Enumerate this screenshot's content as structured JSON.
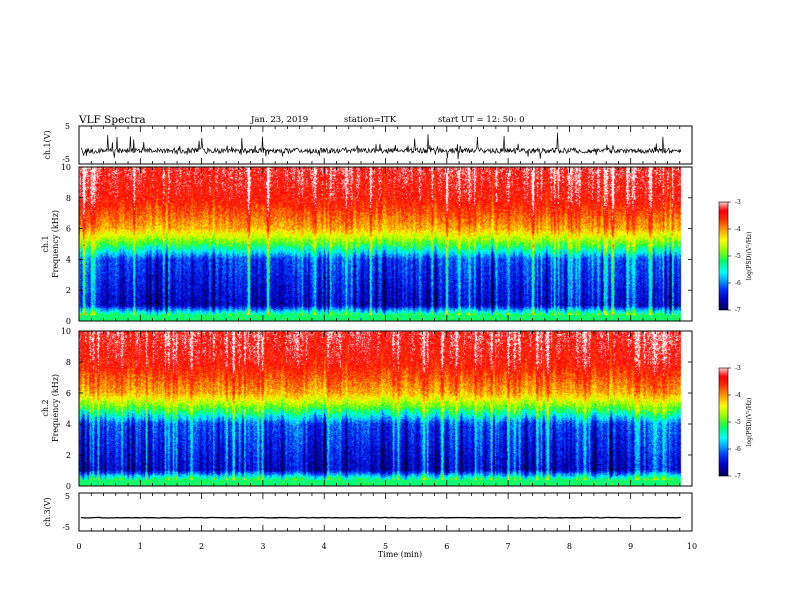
{
  "header": {
    "title": "VLF Spectra",
    "date": "Jan. 23, 2019",
    "station": "station=ITK",
    "start_ut": "start UT =   12: 50: 0"
  },
  "colors": {
    "background": "#ffffff",
    "trace": "#000000",
    "colormap": [
      "#000000",
      "#00007a",
      "#0000ff",
      "#00a0ff",
      "#00ffff",
      "#00ff60",
      "#c8ff00",
      "#ffff00",
      "#ff9000",
      "#ff0000",
      "#ffffff"
    ]
  },
  "chart_data": [
    {
      "type": "line",
      "panel": "ch1-waveform",
      "ylabel": "ch.1(V)",
      "ylim": [
        -5,
        5
      ],
      "yticks": [
        "5",
        "-5"
      ],
      "xlim": [
        0,
        10
      ],
      "baseline_v": -1.5,
      "description": "noisy waveform around baseline with frequent spikes"
    },
    {
      "type": "heatmap",
      "panel": "ch1-spectrogram",
      "ylabel": "ch.1\nFrequency (kHz)",
      "ylabel_lines": [
        "ch.1",
        "Frequency (kHz)"
      ],
      "ylim": [
        0,
        10
      ],
      "yticks": [
        "0",
        "2",
        "4",
        "6",
        "8",
        "10"
      ],
      "xlim": [
        0,
        10
      ],
      "colorbar": {
        "label": "log(PSD)(V²/Hz)",
        "range": [
          -7,
          -3
        ],
        "ticks": [
          "-3",
          "-4",
          "-5",
          "-6",
          "-7"
        ]
      },
      "level_profile_khz": [
        [
          0,
          -7
        ],
        [
          0.3,
          -5
        ],
        [
          1,
          -6.6
        ],
        [
          4,
          -6.2
        ],
        [
          5,
          -5
        ],
        [
          6,
          -4.1
        ],
        [
          8,
          -3.4
        ],
        [
          10,
          -3.2
        ]
      ]
    },
    {
      "type": "heatmap",
      "panel": "ch2-spectrogram",
      "ylabel": "ch.2\nFrequency (kHz)",
      "ylabel_lines": [
        "ch.2",
        "Frequency (kHz)"
      ],
      "ylim": [
        0,
        10
      ],
      "yticks": [
        "0",
        "2",
        "4",
        "6",
        "8",
        "10"
      ],
      "xlim": [
        0,
        10
      ],
      "colorbar": {
        "label": "log(PSD)(V²/Hz)",
        "range": [
          -7,
          -3
        ],
        "ticks": [
          "-3",
          "-4",
          "-5",
          "-6",
          "-7"
        ]
      },
      "level_profile_khz": [
        [
          0,
          -7
        ],
        [
          0.3,
          -5
        ],
        [
          1,
          -6.6
        ],
        [
          4,
          -6.2
        ],
        [
          5,
          -5
        ],
        [
          6,
          -4.1
        ],
        [
          8,
          -3.4
        ],
        [
          10,
          -3.2
        ]
      ]
    },
    {
      "type": "line",
      "panel": "ch3-waveform",
      "ylabel": "ch.3(V)",
      "ylim": [
        -5,
        5
      ],
      "yticks": [
        "5",
        "-5"
      ],
      "xlim": [
        0,
        10
      ],
      "baseline_v": -1.5,
      "description": "flat trace"
    }
  ],
  "xaxis": {
    "label": "Time (min)",
    "ticks": [
      "0",
      "1",
      "2",
      "3",
      "4",
      "5",
      "6",
      "7",
      "8",
      "9",
      "10"
    ]
  }
}
